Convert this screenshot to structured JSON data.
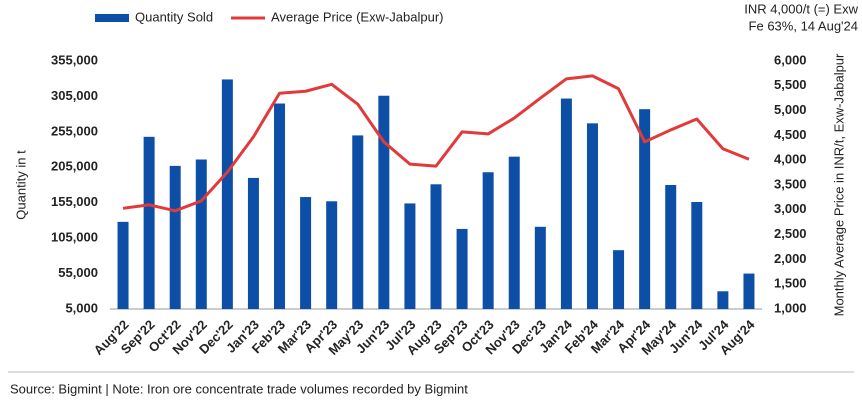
{
  "chart_data": {
    "type": "bar_line",
    "annotations": [
      "INR 4,000/t (=) Exw",
      "Fe 63%, 14 Aug'24"
    ],
    "source": "Source: Bigmint | Note: Iron ore concentrate trade volumes recorded by Bigmint",
    "ylabel": "Quantity in t",
    "y2label": "Monthly Average Price in INR/t, Exw-Jabalpur",
    "categories": [
      "Aug'22",
      "Sep'22",
      "Oct'22",
      "Nov'22",
      "Dec'22",
      "Jan'23",
      "Feb'23",
      "Mar'23",
      "Apr'23",
      "May'23",
      "Jun'23",
      "Jul'23",
      "Aug'23",
      "Sep'23",
      "Oct'23",
      "Nov'23",
      "Dec'23",
      "Jan'24",
      "Feb'24",
      "Mar'24",
      "Apr'24",
      "May'24",
      "Jun'24",
      "Jul'24",
      "Aug'24"
    ],
    "series": [
      {
        "name": "Quantity Sold",
        "color": "#0d4fa6",
        "kind": "bar",
        "values": [
          128000,
          248000,
          207000,
          216000,
          329000,
          190000,
          295000,
          163000,
          157000,
          250000,
          306000,
          154000,
          181000,
          118000,
          198000,
          220000,
          121000,
          302000,
          267000,
          88000,
          287000,
          180000,
          156000,
          30000,
          55000
        ]
      },
      {
        "name": "Average Price (Exw-Jabalpur)",
        "color": "#e23a3a",
        "kind": "line",
        "axis": "y2",
        "values": [
          3030,
          3100,
          2980,
          3180,
          3760,
          4470,
          5350,
          5390,
          5530,
          5130,
          4370,
          3920,
          3880,
          4570,
          4530,
          4850,
          5250,
          5640,
          5700,
          5440,
          4370,
          4610,
          4830,
          4230,
          4020
        ]
      }
    ],
    "ylim": [
      5000,
      355000
    ],
    "yticks": [
      {
        "value": 5000,
        "label": "5,000"
      },
      {
        "value": 55000,
        "label": "55,000"
      },
      {
        "value": 105000,
        "label": "105,000"
      },
      {
        "value": 155000,
        "label": "155,000"
      },
      {
        "value": 205000,
        "label": "205,000"
      },
      {
        "value": 255000,
        "label": "255,000"
      },
      {
        "value": 305000,
        "label": "305,000"
      },
      {
        "value": 355000,
        "label": "355,000"
      }
    ],
    "y2lim": [
      1000,
      6000
    ],
    "y2ticks": [
      {
        "value": 1000,
        "label": "1,000"
      },
      {
        "value": 1500,
        "label": "1,500"
      },
      {
        "value": 2000,
        "label": "2,000"
      },
      {
        "value": 2500,
        "label": "2,500"
      },
      {
        "value": 3000,
        "label": "3,000"
      },
      {
        "value": 3500,
        "label": "3,500"
      },
      {
        "value": 4000,
        "label": "4,000"
      },
      {
        "value": 4500,
        "label": "4,500"
      },
      {
        "value": 5000,
        "label": "5,000"
      },
      {
        "value": 5500,
        "label": "5,500"
      },
      {
        "value": 6000,
        "label": "6,000"
      }
    ],
    "grid": false
  }
}
